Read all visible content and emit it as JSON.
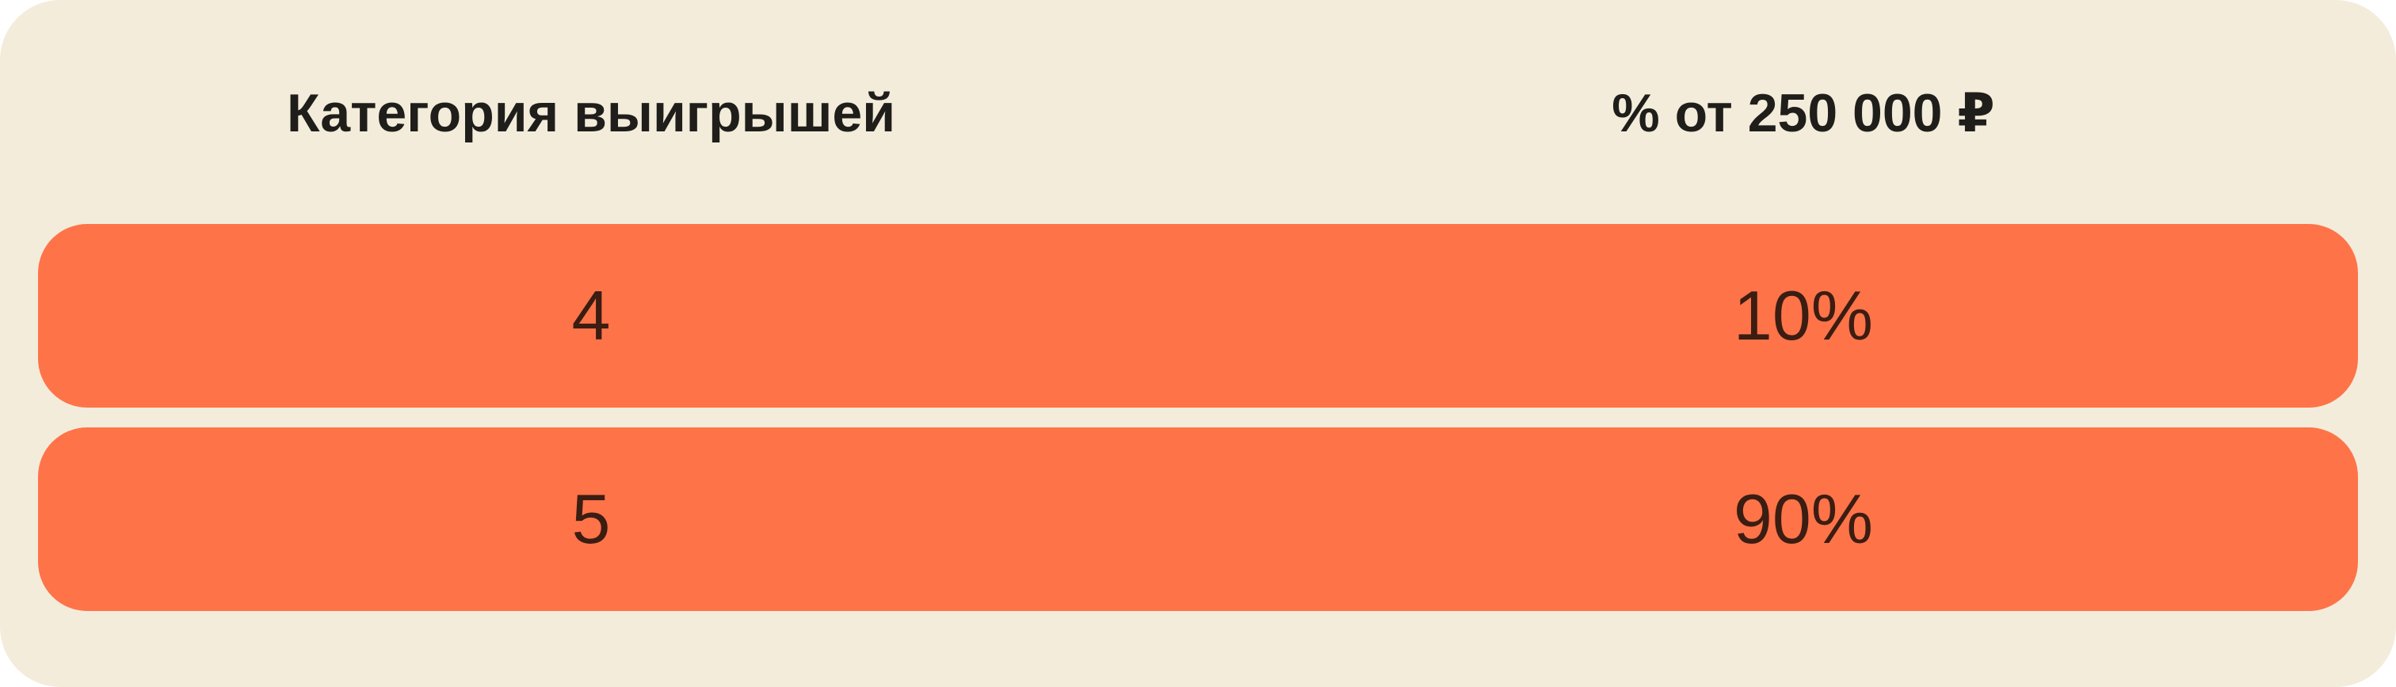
{
  "table": {
    "headers": [
      "Категория выигрышей",
      "% от 250 000 ₽"
    ],
    "rows": [
      {
        "category": "4",
        "percent": "10%"
      },
      {
        "category": "5",
        "percent": "90%"
      }
    ]
  },
  "colors": {
    "background": "#F3ECDB",
    "row": "#FF7349",
    "header_text": "#1f1e1a",
    "row_text": "#3b1d12"
  }
}
